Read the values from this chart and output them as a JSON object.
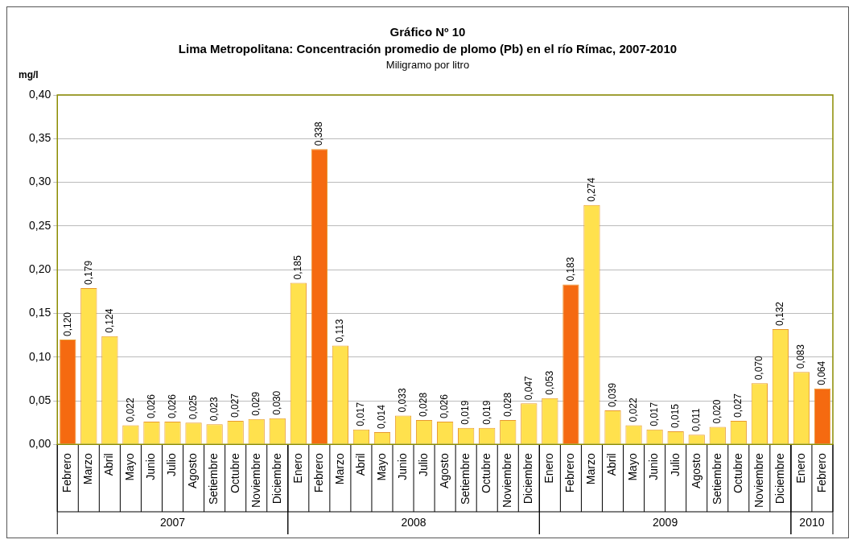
{
  "chart_data": {
    "type": "bar",
    "title": "Gráfico  Nº 10",
    "subtitle": "Lima Metropolitana:  Concentración promedio de plomo (Pb) en el río Rímac, 2007-2010",
    "ylabel": "mg/l",
    "categories": [
      "Febrero",
      "Marzo",
      "Abril",
      "Mayo",
      "Junio",
      "Julio",
      "Agosto",
      "Setiembre",
      "Octubre",
      "Noviembre",
      "Diciembre",
      "Enero",
      "Febrero",
      "Marzo",
      "Abril",
      "Mayo",
      "Junio",
      "Julio",
      "Agosto",
      "Setiembre",
      "Octubre",
      "Noviembre",
      "Diciembre",
      "Enero",
      "Febrero",
      "Marzo",
      "Abril",
      "Mayo",
      "Junio",
      "Julio",
      "Agosto",
      "Setiembre",
      "Octubre",
      "Noviembre",
      "Diciembre",
      "Enero",
      "Febrero"
    ],
    "values": [
      0.12,
      0.179,
      0.124,
      0.022,
      0.026,
      0.026,
      0.025,
      0.023,
      0.027,
      0.029,
      0.03,
      0.185,
      0.338,
      0.113,
      0.017,
      0.014,
      0.033,
      0.028,
      0.026,
      0.019,
      0.019,
      0.028,
      0.047,
      0.053,
      0.183,
      0.274,
      0.039,
      0.022,
      0.017,
      0.015,
      0.011,
      0.02,
      0.027,
      0.07,
      0.132,
      0.083,
      0.064
    ],
    "value_labels": [
      "0,120",
      "0,179",
      "0,124",
      "0,022",
      "0,026",
      "0,026",
      "0,025",
      "0,023",
      "0,027",
      "0,029",
      "0,030",
      "0,185",
      "0,338",
      "0,113",
      "0,017",
      "0,014",
      "0,033",
      "0,028",
      "0,026",
      "0,019",
      "0,019",
      "0,028",
      "0,047",
      "0,053",
      "0,183",
      "0,274",
      "0,039",
      "0,022",
      "0,017",
      "0,015",
      "0,011",
      "0,020",
      "0,027",
      "0,070",
      "0,132",
      "0,083",
      "0,064"
    ],
    "colors": [
      "#f56a10",
      "#ffe14d",
      "#ffe14d",
      "#ffe14d",
      "#ffe14d",
      "#ffe14d",
      "#ffe14d",
      "#ffe14d",
      "#ffe14d",
      "#ffe14d",
      "#ffe14d",
      "#ffe14d",
      "#f56a10",
      "#ffe14d",
      "#ffe14d",
      "#ffe14d",
      "#ffe14d",
      "#ffe14d",
      "#ffe14d",
      "#ffe14d",
      "#ffe14d",
      "#ffe14d",
      "#ffe14d",
      "#ffe14d",
      "#f56a10",
      "#ffe14d",
      "#ffe14d",
      "#ffe14d",
      "#ffe14d",
      "#ffe14d",
      "#ffe14d",
      "#ffe14d",
      "#ffe14d",
      "#ffe14d",
      "#ffe14d",
      "#ffe14d",
      "#f56a10"
    ],
    "ylim": [
      0,
      0.4
    ],
    "yticks": [
      {
        "value": 0,
        "label": "0,00"
      },
      {
        "value": 0.05,
        "label": "0,05"
      },
      {
        "value": 0.1,
        "label": "0,10"
      },
      {
        "value": 0.15,
        "label": "0,15"
      },
      {
        "value": 0.2,
        "label": "0,20"
      },
      {
        "value": 0.25,
        "label": "0,25"
      },
      {
        "value": 0.3,
        "label": "0,30"
      },
      {
        "value": 0.35,
        "label": "0,35"
      },
      {
        "value": 0.4,
        "label": "0,40"
      }
    ],
    "grid": "y",
    "legend": false,
    "annotations": [
      "Miligramo por litro",
      "2007",
      "2008",
      "2009",
      "2010"
    ]
  }
}
